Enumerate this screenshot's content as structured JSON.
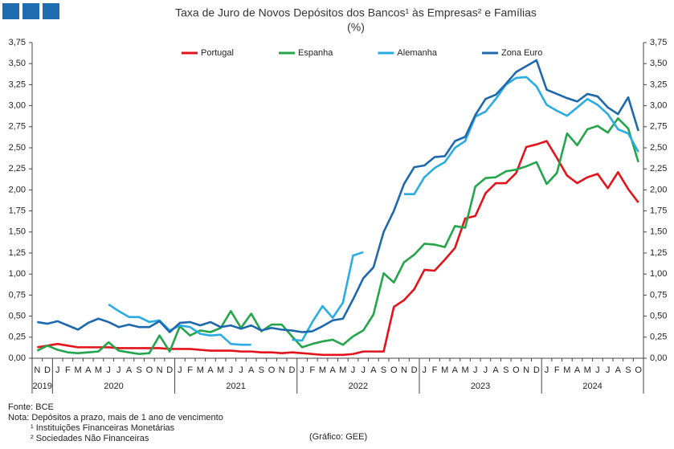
{
  "chart_data": {
    "type": "line",
    "title": "Taxa de Juro de Novos Depósitos dos Bancos¹ às Empresas² e Famílias",
    "subtitle": "(%)",
    "categories": [
      "N",
      "D",
      "J",
      "F",
      "M",
      "A",
      "M",
      "J",
      "J",
      "A",
      "S",
      "O",
      "N",
      "D",
      "J",
      "F",
      "M",
      "A",
      "M",
      "J",
      "J",
      "A",
      "S",
      "O",
      "N",
      "D",
      "J",
      "F",
      "M",
      "A",
      "M",
      "J",
      "J",
      "A",
      "S",
      "O",
      "N",
      "D",
      "J",
      "F",
      "M",
      "A",
      "M",
      "J",
      "J",
      "A",
      "S",
      "O",
      "N",
      "D",
      "J",
      "F",
      "M",
      "A",
      "M",
      "J",
      "J",
      "A",
      "S",
      "O"
    ],
    "years": [
      "2019",
      "2020",
      "2021",
      "2022",
      "2023",
      "2024"
    ],
    "series": [
      {
        "name": "Portugal",
        "color": "#e3131b",
        "values": [
          0.13,
          0.15,
          0.17,
          0.15,
          0.13,
          0.13,
          0.13,
          0.13,
          0.12,
          0.12,
          0.12,
          0.12,
          0.12,
          0.11,
          0.11,
          0.11,
          0.1,
          0.09,
          0.09,
          0.09,
          0.08,
          0.08,
          0.07,
          0.07,
          0.06,
          0.07,
          0.06,
          0.05,
          0.04,
          0.04,
          0.04,
          0.05,
          0.08,
          0.08,
          0.08,
          0.61,
          0.69,
          0.82,
          1.05,
          1.04,
          1.17,
          1.31,
          1.66,
          1.69,
          1.96,
          2.08,
          2.08,
          2.2,
          2.51,
          2.54,
          2.58,
          2.38,
          2.17,
          2.08,
          2.15,
          2.19,
          2.02,
          2.21,
          2.01,
          1.85
        ]
      },
      {
        "name": "Espanha",
        "color": "#23a54b",
        "values": [
          0.09,
          0.15,
          0.1,
          0.07,
          0.06,
          0.07,
          0.08,
          0.19,
          0.09,
          0.07,
          0.05,
          0.06,
          0.27,
          0.08,
          0.38,
          0.27,
          0.33,
          0.31,
          0.36,
          0.56,
          0.36,
          0.53,
          0.32,
          0.4,
          0.4,
          0.26,
          0.13,
          0.17,
          0.2,
          0.22,
          0.16,
          0.26,
          0.33,
          0.52,
          1.01,
          0.9,
          1.14,
          1.23,
          1.36,
          1.35,
          1.32,
          1.57,
          1.55,
          2.04,
          2.14,
          2.15,
          2.22,
          2.24,
          2.28,
          2.33,
          2.07,
          2.2,
          2.67,
          2.53,
          2.72,
          2.76,
          2.68,
          2.85,
          2.73,
          2.33
        ]
      },
      {
        "name": "Alemanha",
        "color": "#2aace2",
        "values": [
          null,
          null,
          null,
          null,
          null,
          null,
          null,
          0.64,
          0.56,
          0.49,
          0.49,
          0.43,
          0.45,
          0.33,
          0.39,
          0.37,
          0.29,
          0.27,
          0.28,
          0.17,
          0.16,
          0.16,
          null,
          null,
          null,
          0.22,
          0.21,
          0.43,
          0.62,
          0.48,
          0.66,
          1.22,
          1.26,
          null,
          null,
          null,
          1.95,
          1.95,
          2.15,
          2.26,
          2.33,
          2.5,
          2.58,
          2.87,
          2.93,
          3.08,
          3.25,
          3.33,
          3.34,
          3.23,
          3.01,
          2.94,
          2.88,
          2.98,
          3.08,
          3.01,
          2.9,
          2.72,
          2.67,
          2.45
        ]
      },
      {
        "name": "Zona Euro",
        "color": "#1e68ad",
        "values": [
          0.43,
          0.41,
          0.44,
          0.39,
          0.34,
          0.42,
          0.47,
          0.43,
          0.37,
          0.4,
          0.37,
          0.37,
          0.44,
          0.31,
          0.42,
          0.43,
          0.39,
          0.43,
          0.37,
          0.39,
          0.35,
          0.39,
          0.33,
          0.36,
          0.34,
          0.33,
          0.31,
          0.32,
          0.38,
          0.45,
          0.47,
          0.7,
          0.95,
          1.08,
          1.5,
          1.75,
          2.07,
          2.27,
          2.29,
          2.39,
          2.4,
          2.58,
          2.63,
          2.89,
          3.08,
          3.13,
          3.26,
          3.4,
          3.47,
          3.54,
          3.19,
          3.14,
          3.09,
          3.05,
          3.14,
          3.11,
          2.98,
          2.9,
          3.1,
          2.7
        ]
      }
    ],
    "ylim": [
      0,
      3.75
    ],
    "yticks": [
      {
        "value": 0,
        "label": "0,00"
      },
      {
        "value": 0.25,
        "label": "0,25"
      },
      {
        "value": 0.5,
        "label": "0,50"
      },
      {
        "value": 0.75,
        "label": "0,75"
      },
      {
        "value": 1,
        "label": "1,00"
      },
      {
        "value": 1.25,
        "label": "1,25"
      },
      {
        "value": 1.5,
        "label": "1,50"
      },
      {
        "value": 1.75,
        "label": "1,75"
      },
      {
        "value": 2,
        "label": "2,00"
      },
      {
        "value": 2.25,
        "label": "2,25"
      },
      {
        "value": 2.5,
        "label": "2,50"
      },
      {
        "value": 2.75,
        "label": "2,75"
      },
      {
        "value": 3,
        "label": "3,00"
      },
      {
        "value": 3.25,
        "label": "3,25"
      },
      {
        "value": 3.5,
        "label": "3,50"
      },
      {
        "value": 3.75,
        "label": "3,75"
      }
    ],
    "y2lim": [
      0,
      3.75
    ],
    "y2ticks": [
      {
        "value": 0,
        "label": "0,00"
      },
      {
        "value": 0.25,
        "label": "0,25"
      },
      {
        "value": 0.5,
        "label": "0,50"
      },
      {
        "value": 0.75,
        "label": "0,75"
      },
      {
        "value": 1,
        "label": "1,00"
      },
      {
        "value": 1.25,
        "label": "1,25"
      },
      {
        "value": 1.5,
        "label": "1,50"
      },
      {
        "value": 1.75,
        "label": "1,75"
      },
      {
        "value": 2,
        "label": "2,00"
      },
      {
        "value": 2.25,
        "label": "2,25"
      },
      {
        "value": 2.5,
        "label": "2,50"
      },
      {
        "value": 2.75,
        "label": "2,75"
      },
      {
        "value": 3,
        "label": "3,00"
      },
      {
        "value": 3.25,
        "label": "3,25"
      },
      {
        "value": 3.5,
        "label": "3,50"
      },
      {
        "value": 3.75,
        "label": "3,75"
      }
    ],
    "grid": false,
    "legend": "top",
    "source": "Fonte: BCE",
    "note": "Nota: Depósitos a prazo, mais de 1 ano de vencimento",
    "footnotes": [
      "¹ Instituições Financeiras Monetárias",
      "² Sociedades Não Financeiras"
    ],
    "credit": "(Gráfico: GEE)"
  }
}
